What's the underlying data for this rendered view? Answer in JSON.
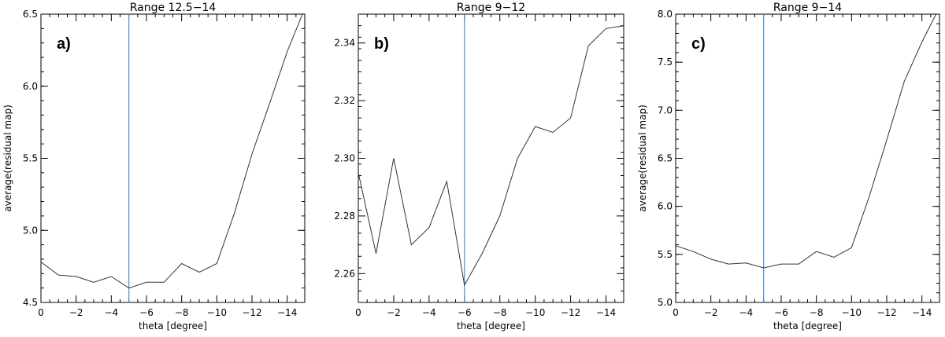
{
  "chart_data": [
    {
      "type": "line",
      "title": "Range 12.5−14",
      "panel_label": "a)",
      "xlabel": "theta [degree]",
      "ylabel": "average(residual map)",
      "xlim": [
        0,
        -15
      ],
      "ylim": [
        4.5,
        6.5
      ],
      "x_ticks": [
        0,
        -2,
        -4,
        -6,
        -8,
        -10,
        -12,
        -14
      ],
      "y_ticks": [
        4.5,
        5.0,
        5.5,
        6.0,
        6.5
      ],
      "y_decimals": 1,
      "x": [
        0,
        -1,
        -2,
        -3,
        -4,
        -5,
        -6,
        -7,
        -8,
        -9,
        -10,
        -11,
        -12,
        -13,
        -14,
        -15
      ],
      "y": [
        4.78,
        4.69,
        4.68,
        4.64,
        4.68,
        4.6,
        4.64,
        4.64,
        4.77,
        4.71,
        4.77,
        5.12,
        5.53,
        5.88,
        6.24,
        6.54
      ],
      "vline_x": -5,
      "vline_color": "#4a90d9",
      "line_color": "#333333"
    },
    {
      "type": "line",
      "title": "Range 9−12",
      "panel_label": "b)",
      "xlabel": "theta [degree]",
      "ylabel": "",
      "xlim": [
        0,
        -15
      ],
      "ylim": [
        2.25,
        2.35
      ],
      "x_ticks": [
        0,
        -2,
        -4,
        -6,
        -8,
        -10,
        -12,
        -14
      ],
      "y_ticks": [
        2.26,
        2.28,
        2.3,
        2.32,
        2.34
      ],
      "y_decimals": 2,
      "x": [
        0,
        -1,
        -2,
        -3,
        -4,
        -5,
        -6,
        -7,
        -8,
        -9,
        -10,
        -11,
        -12,
        -13,
        -14,
        -15
      ],
      "y": [
        2.295,
        2.267,
        2.3,
        2.27,
        2.276,
        2.292,
        2.256,
        2.267,
        2.28,
        2.3,
        2.311,
        2.309,
        2.314,
        2.339,
        2.345,
        2.346
      ],
      "vline_x": -6,
      "vline_color": "#4a90d9",
      "line_color": "#333333"
    },
    {
      "type": "line",
      "title": "Range 9−14",
      "panel_label": "c)",
      "xlabel": "theta [degree]",
      "ylabel": "average(residual map)",
      "xlim": [
        0,
        -15
      ],
      "ylim": [
        5.0,
        8.0
      ],
      "x_ticks": [
        0,
        -2,
        -4,
        -6,
        -8,
        -10,
        -12,
        -14
      ],
      "y_ticks": [
        5.0,
        5.5,
        6.0,
        6.5,
        7.0,
        7.5,
        8.0
      ],
      "y_decimals": 1,
      "x": [
        0,
        -1,
        -2,
        -3,
        -4,
        -5,
        -6,
        -7,
        -8,
        -9,
        -10,
        -11,
        -12,
        -13,
        -14,
        -15
      ],
      "y": [
        5.59,
        5.53,
        5.45,
        5.4,
        5.41,
        5.36,
        5.4,
        5.4,
        5.53,
        5.47,
        5.57,
        6.1,
        6.69,
        7.3,
        7.71,
        8.07
      ],
      "vline_x": -5,
      "vline_color": "#4a90d9",
      "line_color": "#333333"
    }
  ]
}
